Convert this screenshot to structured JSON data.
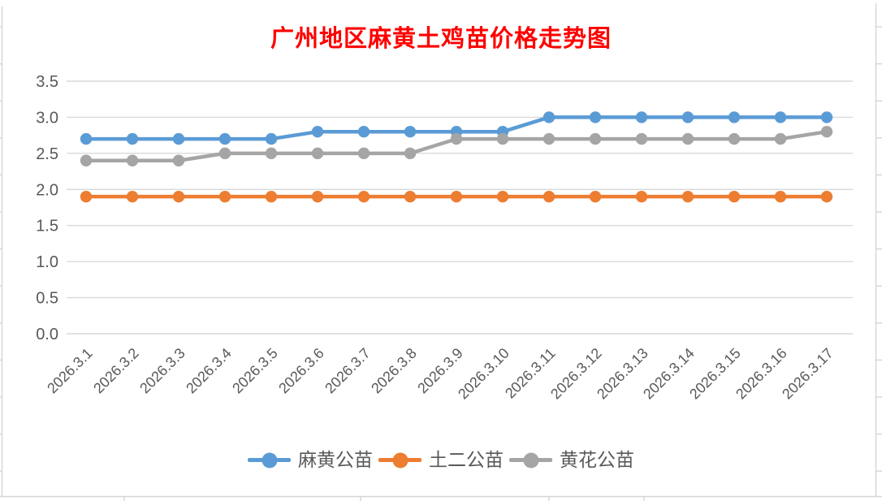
{
  "chart_data": {
    "type": "line",
    "title": "广州地区麻黄土鸡苗价格走势图",
    "categories": [
      "2026.3.1",
      "2026.3.2",
      "2026.3.3",
      "2026.3.4",
      "2026.3.5",
      "2026.3.6",
      "2026.3.7",
      "2026.3.8",
      "2026.3.9",
      "2026.3.10",
      "2026.3.11",
      "2026.3.12",
      "2026.3.13",
      "2026.3.14",
      "2026.3.15",
      "2026.3.16",
      "2026.3.17"
    ],
    "series": [
      {
        "name": "麻黄公苗",
        "color": "#5B9BD5",
        "values": [
          2.7,
          2.7,
          2.7,
          2.7,
          2.7,
          2.8,
          2.8,
          2.8,
          2.8,
          2.8,
          3.0,
          3.0,
          3.0,
          3.0,
          3.0,
          3.0,
          3.0
        ]
      },
      {
        "name": "土二公苗",
        "color": "#ED7D31",
        "values": [
          1.9,
          1.9,
          1.9,
          1.9,
          1.9,
          1.9,
          1.9,
          1.9,
          1.9,
          1.9,
          1.9,
          1.9,
          1.9,
          1.9,
          1.9,
          1.9,
          1.9
        ]
      },
      {
        "name": "黄花公苗",
        "color": "#A5A5A5",
        "values": [
          2.4,
          2.4,
          2.4,
          2.5,
          2.5,
          2.5,
          2.5,
          2.5,
          2.7,
          2.7,
          2.7,
          2.7,
          2.7,
          2.7,
          2.7,
          2.7,
          2.8
        ]
      }
    ],
    "ylim": [
      0,
      3.5
    ],
    "ytick_step": 0.5,
    "ytick_labels": [
      "0.0",
      "0.5",
      "1.0",
      "1.5",
      "2.0",
      "2.5",
      "3.0",
      "3.5"
    ],
    "xlabel": "",
    "ylabel": "",
    "grid": true,
    "x_label_rotation": -45,
    "legend_position": "bottom"
  },
  "colors": {
    "title": "#FF0000",
    "axis_text": "#595959",
    "gridline": "#D9D9D9",
    "sheet_gridline": "#D5D5D5",
    "marker_line": 4.5
  }
}
